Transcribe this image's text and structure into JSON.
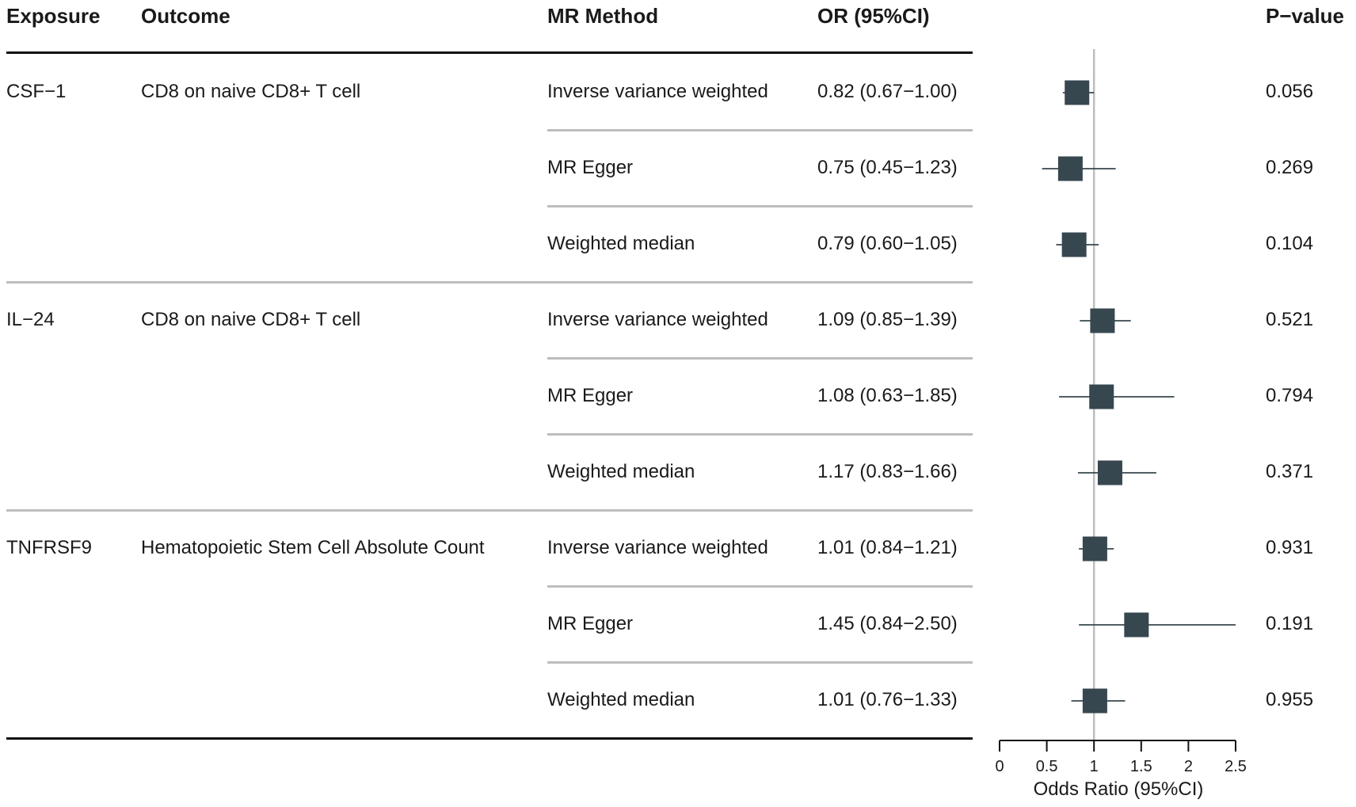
{
  "headers": {
    "exposure": "Exposure",
    "outcome": "Outcome",
    "method": "MR Method",
    "or": "OR (95%CI)",
    "pvalue": "P−value"
  },
  "rows": [
    {
      "exposure": "CSF−1",
      "outcome": "CD8 on naive CD8+ T cell",
      "method": "Inverse variance weighted",
      "or_text": "0.82 (0.67−1.00)",
      "p": "0.056"
    },
    {
      "exposure": "",
      "outcome": "",
      "method": "MR Egger",
      "or_text": "0.75 (0.45−1.23)",
      "p": "0.269"
    },
    {
      "exposure": "",
      "outcome": "",
      "method": "Weighted median",
      "or_text": "0.79 (0.60−1.05)",
      "p": "0.104"
    },
    {
      "exposure": "IL−24",
      "outcome": "CD8 on naive CD8+ T cell",
      "method": "Inverse variance weighted",
      "or_text": "1.09 (0.85−1.39)",
      "p": "0.521"
    },
    {
      "exposure": "",
      "outcome": "",
      "method": "MR Egger",
      "or_text": "1.08 (0.63−1.85)",
      "p": "0.794"
    },
    {
      "exposure": "",
      "outcome": "",
      "method": "Weighted median",
      "or_text": "1.17 (0.83−1.66)",
      "p": "0.371"
    },
    {
      "exposure": "TNFRSF9",
      "outcome": "Hematopoietic Stem Cell Absolute Count",
      "method": "Inverse variance weighted",
      "or_text": "1.01 (0.84−1.21)",
      "p": "0.931"
    },
    {
      "exposure": "",
      "outcome": "",
      "method": "MR Egger",
      "or_text": "1.45 (0.84−2.50)",
      "p": "0.191"
    },
    {
      "exposure": "",
      "outcome": "",
      "method": "Weighted median",
      "or_text": "1.01 (0.76−1.33)",
      "p": "0.955"
    }
  ],
  "chart_data": {
    "type": "scatter",
    "subtype": "forest",
    "xlabel": "Odds Ratio (95%CI)",
    "xlim": [
      0,
      2.5
    ],
    "xticks": [
      0,
      0.5,
      1,
      1.5,
      2,
      2.5
    ],
    "xtick_labels": [
      "0",
      "0.5",
      "1",
      "1.5",
      "2",
      "2.5"
    ],
    "reference_line": 1,
    "points": [
      {
        "or": 0.82,
        "lower": 0.67,
        "upper": 1.0
      },
      {
        "or": 0.75,
        "lower": 0.45,
        "upper": 1.23
      },
      {
        "or": 0.79,
        "lower": 0.6,
        "upper": 1.05
      },
      {
        "or": 1.09,
        "lower": 0.85,
        "upper": 1.39
      },
      {
        "or": 1.08,
        "lower": 0.63,
        "upper": 1.85
      },
      {
        "or": 1.17,
        "lower": 0.83,
        "upper": 1.66
      },
      {
        "or": 1.01,
        "lower": 0.84,
        "upper": 1.21
      },
      {
        "or": 1.45,
        "lower": 0.84,
        "upper": 2.5
      },
      {
        "or": 1.01,
        "lower": 0.76,
        "upper": 1.33
      }
    ],
    "marker_color": "#37474f",
    "line_color": "#37474f",
    "reference_color": "#bdbdbd"
  }
}
